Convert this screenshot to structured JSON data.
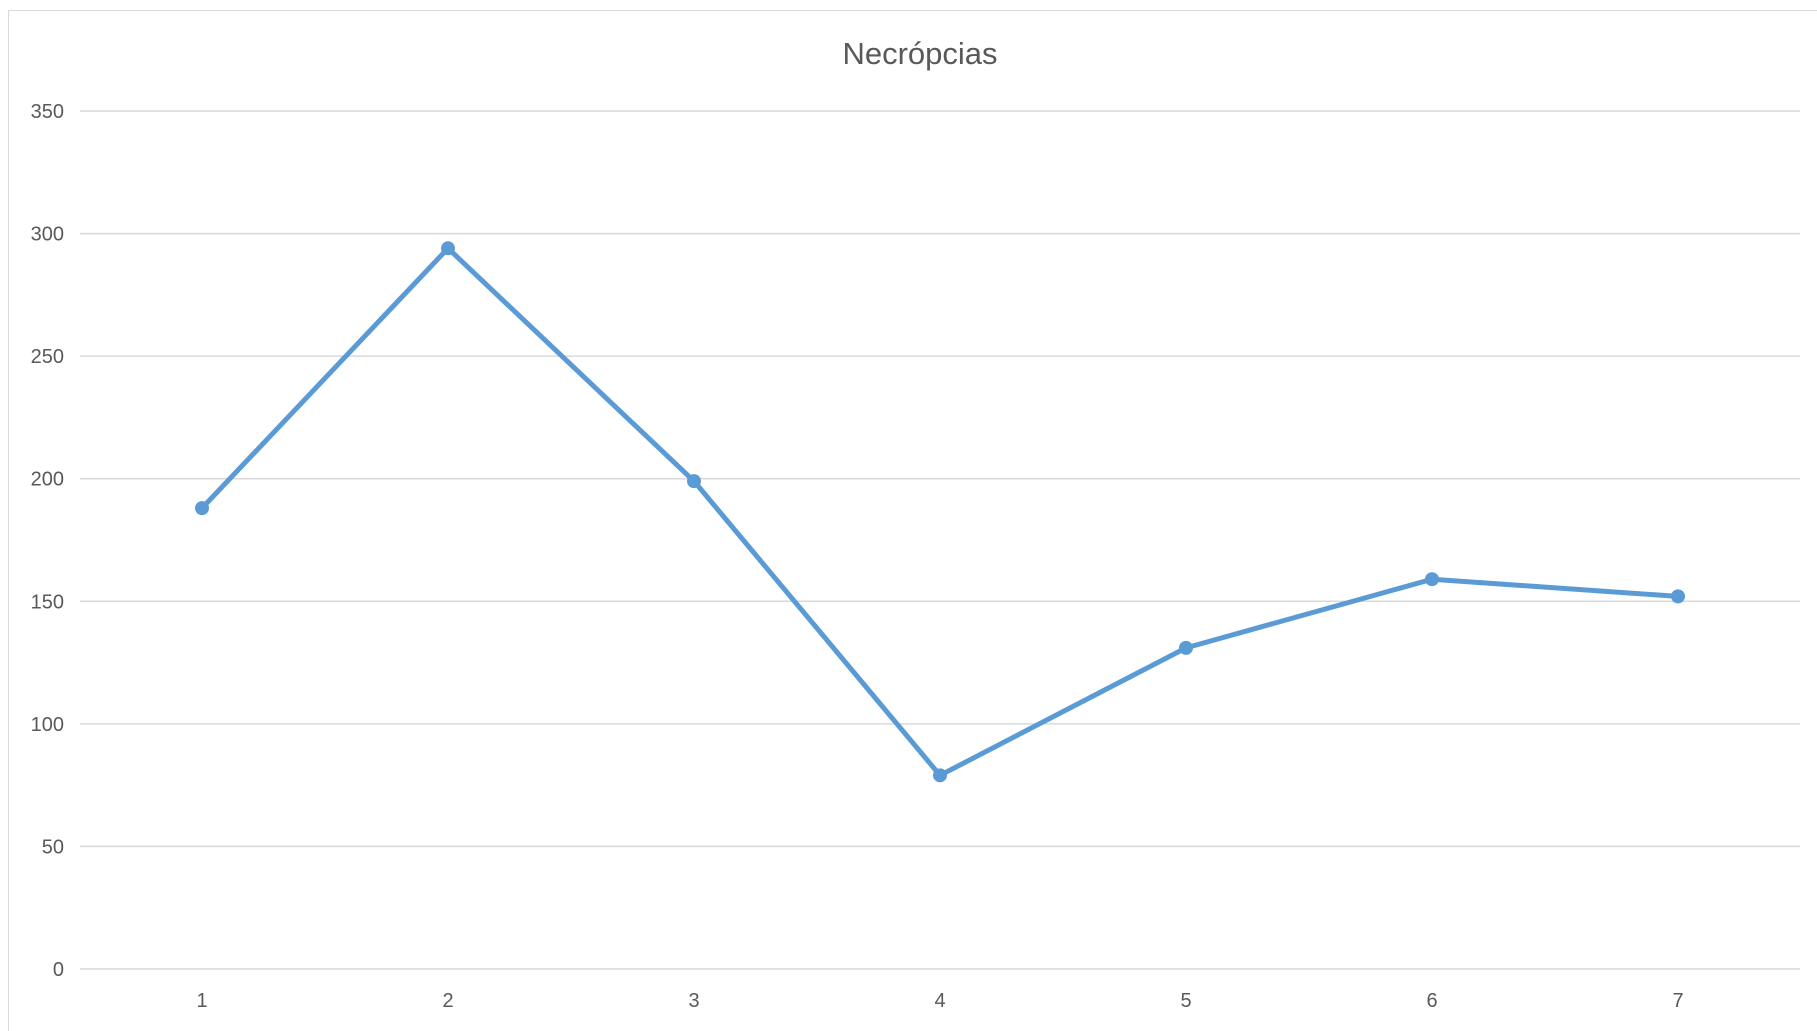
{
  "chart_data": {
    "type": "line",
    "title": "Necrópcias",
    "xlabel": "",
    "ylabel": "",
    "categories": [
      "1",
      "2",
      "3",
      "4",
      "5",
      "6",
      "7"
    ],
    "series": [
      {
        "values": [
          188,
          294,
          199,
          79,
          131,
          159,
          152
        ],
        "color": "#5b9bd5"
      }
    ],
    "ylim": [
      0,
      350
    ],
    "yticks": [
      0,
      50,
      100,
      150,
      200,
      250,
      300,
      350
    ],
    "grid": true,
    "legend": "none",
    "markers": true
  }
}
